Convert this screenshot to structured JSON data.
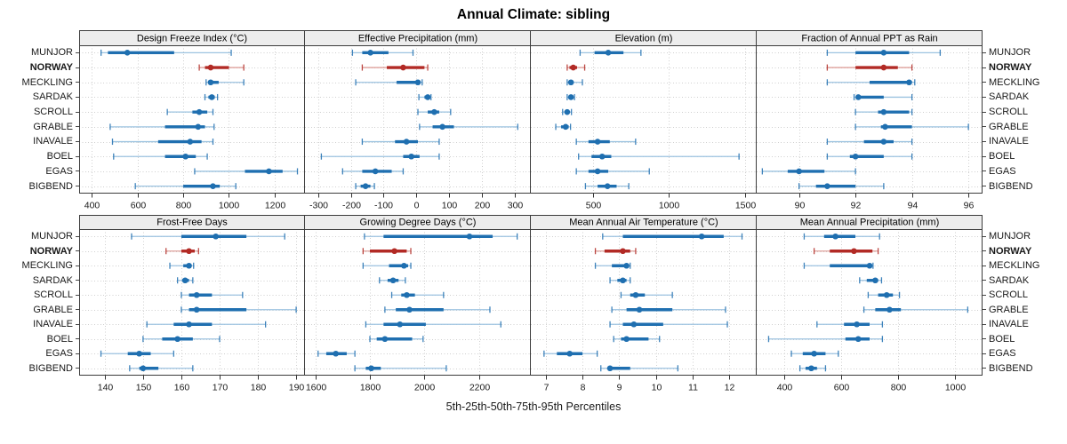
{
  "title": "Annual Climate: sibling",
  "caption": "5th-25th-50th-75th-95th Percentiles",
  "percentile_labels": [
    "5th",
    "25th",
    "50th",
    "75th",
    "95th"
  ],
  "stations": [
    "MUNJOR",
    "NORWAY",
    "MECKLING",
    "SARDAK",
    "SCROLL",
    "GRABLE",
    "INAVALE",
    "BOEL",
    "EGAS",
    "BIGBEND"
  ],
  "highlighted_station": "NORWAY",
  "colors": {
    "series_main": "#1f6fb0",
    "series_light": "#9cc3e0",
    "highlight_main": "#b22a25",
    "highlight_light": "#dfa09c",
    "strip_bg": "#ededed",
    "panel_border": "#3c3c3c",
    "grid": "#cfcfcf",
    "tick": "#333333",
    "text": "#1a1a1a"
  },
  "chart_data": [
    {
      "type": "dotplot-interval",
      "row": 0,
      "panel": "Design Freeze Index (°C)",
      "xlim": [
        344,
        1333
      ],
      "xticks": [
        400,
        600,
        800,
        1000,
        1200
      ],
      "series": [
        {
          "name": "MUNJOR",
          "values": [
            440,
            470,
            555,
            760,
            1010
          ]
        },
        {
          "name": "NORWAY",
          "values": [
            870,
            895,
            920,
            1000,
            1065
          ]
        },
        {
          "name": "MECKLING",
          "values": [
            900,
            910,
            920,
            955,
            1065
          ]
        },
        {
          "name": "SARDAK",
          "values": [
            895,
            910,
            925,
            938,
            950
          ]
        },
        {
          "name": "SCROLL",
          "values": [
            730,
            840,
            870,
            905,
            930
          ]
        },
        {
          "name": "GRABLE",
          "values": [
            480,
            720,
            865,
            895,
            935
          ]
        },
        {
          "name": "INAVALE",
          "values": [
            490,
            690,
            830,
            880,
            930
          ]
        },
        {
          "name": "BOEL",
          "values": [
            495,
            720,
            810,
            855,
            905
          ]
        },
        {
          "name": "EGAS",
          "values": [
            850,
            1070,
            1175,
            1235,
            1300
          ]
        },
        {
          "name": "BIGBEND",
          "values": [
            590,
            800,
            930,
            960,
            1030
          ]
        }
      ]
    },
    {
      "type": "dotplot-interval",
      "row": 0,
      "panel": "Effective Precipitation (mm)",
      "xlim": [
        -340,
        350
      ],
      "xticks": [
        -300,
        -200,
        -100,
        0,
        100,
        200,
        300
      ],
      "series": [
        {
          "name": "MUNJOR",
          "values": [
            -195,
            -165,
            -140,
            -85,
            -10
          ]
        },
        {
          "name": "NORWAY",
          "values": [
            -165,
            -90,
            -40,
            25,
            35
          ]
        },
        {
          "name": "MECKLING",
          "values": [
            -185,
            -60,
            5,
            12,
            18
          ]
        },
        {
          "name": "SARDAK",
          "values": [
            8,
            25,
            35,
            40,
            45
          ]
        },
        {
          "name": "SCROLL",
          "values": [
            5,
            35,
            55,
            70,
            105
          ]
        },
        {
          "name": "GRABLE",
          "values": [
            10,
            50,
            80,
            115,
            310
          ]
        },
        {
          "name": "INAVALE",
          "values": [
            -165,
            -65,
            -30,
            5,
            70
          ]
        },
        {
          "name": "BOEL",
          "values": [
            -290,
            -40,
            -15,
            10,
            70
          ]
        },
        {
          "name": "EGAS",
          "values": [
            -225,
            -165,
            -125,
            -75,
            -40
          ]
        },
        {
          "name": "BIGBEND",
          "values": [
            -185,
            -170,
            -155,
            -140,
            -128
          ]
        }
      ]
    },
    {
      "type": "dotplot-interval",
      "row": 0,
      "panel": "Elevation (m)",
      "xlim": [
        91,
        1576
      ],
      "xticks": [
        500,
        1000,
        1500
      ],
      "series": [
        {
          "name": "MUNJOR",
          "values": [
            415,
            510,
            600,
            700,
            815
          ]
        },
        {
          "name": "NORWAY",
          "values": [
            330,
            345,
            370,
            395,
            445
          ]
        },
        {
          "name": "MECKLING",
          "values": [
            330,
            340,
            355,
            370,
            430
          ]
        },
        {
          "name": "SARDAK",
          "values": [
            330,
            345,
            355,
            365,
            378
          ]
        },
        {
          "name": "SCROLL",
          "values": [
            300,
            315,
            330,
            345,
            358
          ]
        },
        {
          "name": "GRABLE",
          "values": [
            255,
            290,
            320,
            340,
            352
          ]
        },
        {
          "name": "INAVALE",
          "values": [
            390,
            470,
            530,
            610,
            780
          ]
        },
        {
          "name": "BOEL",
          "values": [
            405,
            490,
            560,
            620,
            1460
          ]
        },
        {
          "name": "EGAS",
          "values": [
            390,
            470,
            530,
            600,
            870
          ]
        },
        {
          "name": "BIGBEND",
          "values": [
            450,
            530,
            595,
            655,
            735
          ]
        }
      ]
    },
    {
      "type": "dotplot-interval",
      "row": 0,
      "panel": "Fraction of Annual PPT as Rain",
      "xlim": [
        88.5,
        96.5
      ],
      "xticks": [
        90,
        92,
        94,
        96
      ],
      "series": [
        {
          "name": "MUNJOR",
          "values": [
            91,
            92,
            93,
            93.9,
            95
          ]
        },
        {
          "name": "NORWAY",
          "values": [
            91,
            92,
            93,
            93.5,
            94
          ]
        },
        {
          "name": "MECKLING",
          "values": [
            91,
            92.5,
            93.9,
            94,
            94.1
          ]
        },
        {
          "name": "SARDAK",
          "values": [
            91.95,
            92.05,
            92.1,
            93,
            94
          ]
        },
        {
          "name": "SCROLL",
          "values": [
            92,
            92.8,
            93,
            93.9,
            94
          ]
        },
        {
          "name": "GRABLE",
          "values": [
            92,
            92.9,
            93.05,
            94,
            96
          ]
        },
        {
          "name": "INAVALE",
          "values": [
            91,
            92.3,
            93,
            93.35,
            94
          ]
        },
        {
          "name": "BOEL",
          "values": [
            91,
            91.8,
            92,
            93,
            94
          ]
        },
        {
          "name": "EGAS",
          "values": [
            88.7,
            89.6,
            90,
            90.9,
            92
          ]
        },
        {
          "name": "BIGBEND",
          "values": [
            90,
            90.6,
            91,
            92,
            93
          ]
        }
      ]
    },
    {
      "type": "dotplot-interval",
      "row": 1,
      "panel": "Frost-Free Days",
      "xlim": [
        133.3,
        192.3
      ],
      "xticks": [
        140,
        150,
        160,
        170,
        180,
        190
      ],
      "series": [
        {
          "name": "MUNJOR",
          "values": [
            147,
            160,
            169,
            177,
            187
          ]
        },
        {
          "name": "NORWAY",
          "values": [
            156,
            160,
            162,
            163.5,
            164.5
          ]
        },
        {
          "name": "MECKLING",
          "values": [
            157,
            160.5,
            162,
            162.6,
            163.2
          ]
        },
        {
          "name": "SARDAK",
          "values": [
            159,
            160.2,
            161,
            162,
            163
          ]
        },
        {
          "name": "SCROLL",
          "values": [
            160,
            162,
            164,
            168,
            176
          ]
        },
        {
          "name": "GRABLE",
          "values": [
            160,
            162,
            164,
            177,
            190
          ]
        },
        {
          "name": "INAVALE",
          "values": [
            151,
            158,
            162,
            168,
            182
          ]
        },
        {
          "name": "BOEL",
          "values": [
            150,
            155,
            159,
            163,
            170
          ]
        },
        {
          "name": "EGAS",
          "values": [
            139,
            146,
            149,
            152,
            158
          ]
        },
        {
          "name": "BIGBEND",
          "values": [
            146.5,
            149,
            150,
            154,
            163
          ]
        }
      ]
    },
    {
      "type": "dotplot-interval",
      "row": 1,
      "panel": "Growing Degree Days (°C)",
      "xlim": [
        1562,
        2390
      ],
      "xticks": [
        1600,
        1800,
        2000,
        2200
      ],
      "series": [
        {
          "name": "MUNJOR",
          "values": [
            1780,
            1850,
            2165,
            2250,
            2340
          ]
        },
        {
          "name": "NORWAY",
          "values": [
            1775,
            1800,
            1890,
            1935,
            1950
          ]
        },
        {
          "name": "MECKLING",
          "values": [
            1775,
            1870,
            1925,
            1940,
            1950
          ]
        },
        {
          "name": "SARDAK",
          "values": [
            1835,
            1865,
            1885,
            1905,
            1930
          ]
        },
        {
          "name": "SCROLL",
          "values": [
            1880,
            1915,
            1935,
            1965,
            2070
          ]
        },
        {
          "name": "GRABLE",
          "values": [
            1855,
            1895,
            1945,
            2070,
            2240
          ]
        },
        {
          "name": "INAVALE",
          "values": [
            1785,
            1850,
            1910,
            2005,
            2280
          ]
        },
        {
          "name": "BOEL",
          "values": [
            1800,
            1825,
            1855,
            1955,
            1995
          ]
        },
        {
          "name": "EGAS",
          "values": [
            1610,
            1640,
            1675,
            1715,
            1745
          ]
        },
        {
          "name": "BIGBEND",
          "values": [
            1745,
            1785,
            1805,
            1840,
            2080
          ]
        }
      ]
    },
    {
      "type": "dotplot-interval",
      "row": 1,
      "panel": "Mean Annual Air Temperature (°C)",
      "xlim": [
        6.59,
        12.75
      ],
      "xticks": [
        7,
        8,
        9,
        10,
        11,
        12
      ],
      "series": [
        {
          "name": "MUNJOR",
          "values": [
            8.55,
            9.1,
            11.25,
            11.85,
            12.35
          ]
        },
        {
          "name": "NORWAY",
          "values": [
            8.35,
            8.6,
            9.1,
            9.3,
            9.45
          ]
        },
        {
          "name": "MECKLING",
          "values": [
            8.35,
            8.8,
            9.2,
            9.25,
            9.3
          ]
        },
        {
          "name": "SARDAK",
          "values": [
            8.75,
            8.95,
            9.1,
            9.2,
            9.3
          ]
        },
        {
          "name": "SCROLL",
          "values": [
            9.05,
            9.3,
            9.45,
            9.7,
            10.45
          ]
        },
        {
          "name": "GRABLE",
          "values": [
            8.8,
            9.2,
            9.55,
            10.45,
            11.9
          ]
        },
        {
          "name": "INAVALE",
          "values": [
            8.75,
            9.1,
            9.4,
            10.2,
            11.95
          ]
        },
        {
          "name": "BOEL",
          "values": [
            8.85,
            9.05,
            9.2,
            9.8,
            10.1
          ]
        },
        {
          "name": "EGAS",
          "values": [
            6.95,
            7.3,
            7.65,
            8.0,
            8.4
          ]
        },
        {
          "name": "BIGBEND",
          "values": [
            8.5,
            8.7,
            8.75,
            9.3,
            10.6
          ]
        }
      ]
    },
    {
      "type": "dotplot-interval",
      "row": 1,
      "panel": "Mean Annual Precipitation (mm)",
      "xlim": [
        303,
        1097
      ],
      "xticks": [
        400,
        600,
        800,
        1000
      ],
      "series": [
        {
          "name": "MUNJOR",
          "values": [
            470,
            540,
            580,
            650,
            735
          ]
        },
        {
          "name": "NORWAY",
          "values": [
            505,
            560,
            645,
            710,
            730
          ]
        },
        {
          "name": "MECKLING",
          "values": [
            470,
            560,
            700,
            706,
            712
          ]
        },
        {
          "name": "SARDAK",
          "values": [
            665,
            690,
            720,
            730,
            742
          ]
        },
        {
          "name": "SCROLL",
          "values": [
            695,
            730,
            760,
            782,
            805
          ]
        },
        {
          "name": "GRABLE",
          "values": [
            680,
            720,
            770,
            810,
            1045
          ]
        },
        {
          "name": "INAVALE",
          "values": [
            515,
            610,
            655,
            700,
            745
          ]
        },
        {
          "name": "BOEL",
          "values": [
            345,
            615,
            660,
            700,
            745
          ]
        },
        {
          "name": "EGAS",
          "values": [
            425,
            465,
            505,
            545,
            590
          ]
        },
        {
          "name": "BIGBEND",
          "values": [
            455,
            475,
            495,
            515,
            545
          ]
        }
      ]
    }
  ]
}
